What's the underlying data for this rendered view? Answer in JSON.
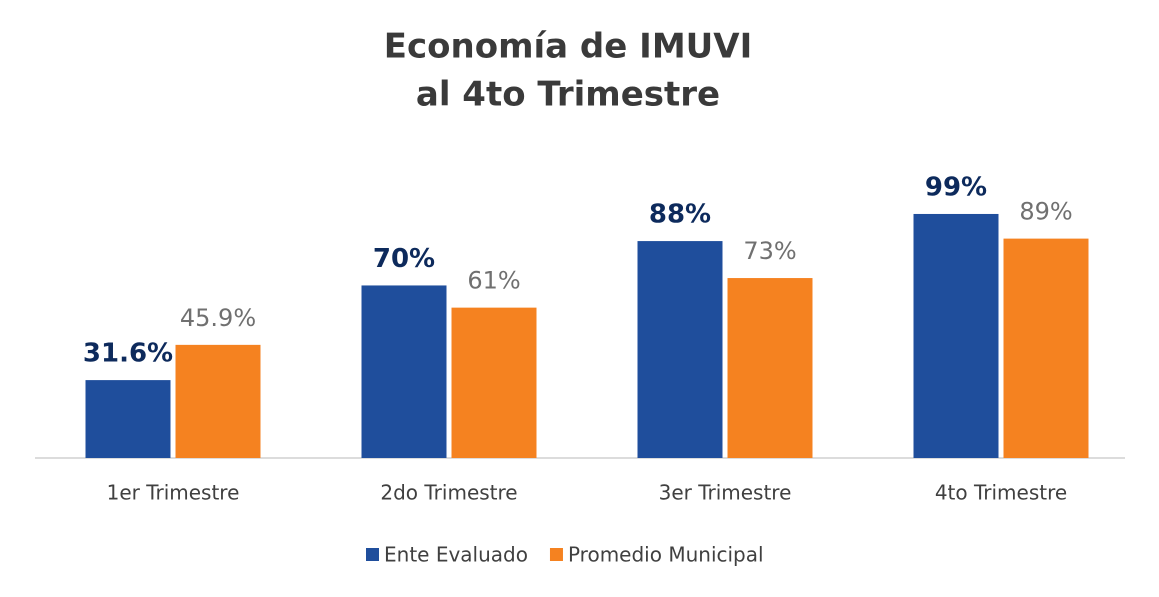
{
  "chart_data": {
    "type": "bar",
    "title": [
      "Economía de IMUVI",
      "al 4to Trimestre"
    ],
    "categories": [
      "1er Trimestre",
      "2do Trimestre",
      "3er Trimestre",
      "4to Trimestre"
    ],
    "series": [
      {
        "name": "Ente Evaluado",
        "color": "#1f4e9c",
        "values": [
          31.6,
          70,
          88,
          99
        ],
        "value_labels": [
          "31.6%",
          "70%",
          "88%",
          "99%"
        ]
      },
      {
        "name": "Promedio Municipal",
        "color": "#f58220",
        "values": [
          45.9,
          61,
          73,
          89
        ],
        "value_labels": [
          "45.9%",
          "61%",
          "73%",
          "89%"
        ]
      }
    ],
    "legend": "bottom"
  }
}
